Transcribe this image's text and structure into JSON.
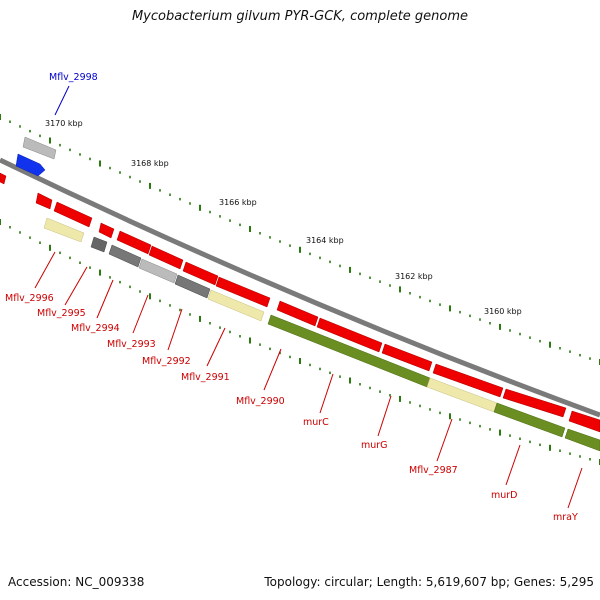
{
  "title": "Mycobacterium gilvum PYR-GCK, complete genome",
  "footer": {
    "accession": "Accession: NC_009338",
    "topology": "Topology: circular; Length: 5,619,607 bp; Genes: 5,295"
  },
  "scale_labels": [
    "3170 kbp",
    "3168 kbp",
    "3166 kbp",
    "3164 kbp",
    "3162 kbp",
    "3160 kbp"
  ],
  "gene_labels": [
    {
      "text": "Mflv_2998",
      "color": "#0000cc"
    },
    {
      "text": "Mflv_2996",
      "color": "#cc0000"
    },
    {
      "text": "Mflv_2995",
      "color": "#cc0000"
    },
    {
      "text": "Mflv_2994",
      "color": "#cc0000"
    },
    {
      "text": "Mflv_2993",
      "color": "#cc0000"
    },
    {
      "text": "Mflv_2992",
      "color": "#cc0000"
    },
    {
      "text": "Mflv_2991",
      "color": "#cc0000"
    },
    {
      "text": "Mflv_2990",
      "color": "#cc0000"
    },
    {
      "text": "murC",
      "color": "#cc0000"
    },
    {
      "text": "murG",
      "color": "#cc0000"
    },
    {
      "text": "Mflv_2987",
      "color": "#cc0000"
    },
    {
      "text": "murD",
      "color": "#cc0000"
    },
    {
      "text": "mraY",
      "color": "#cc0000"
    }
  ],
  "colors": {
    "cds_forward": "#ee0000",
    "cds_blue": "#1133ee",
    "rna_olive": "#6b8e23",
    "misc_yellow": "#eee8aa",
    "misc_gray": "#aaaaaa",
    "misc_dark": "#666666",
    "backbone": "#888888",
    "ticks": "#2a7a10"
  }
}
